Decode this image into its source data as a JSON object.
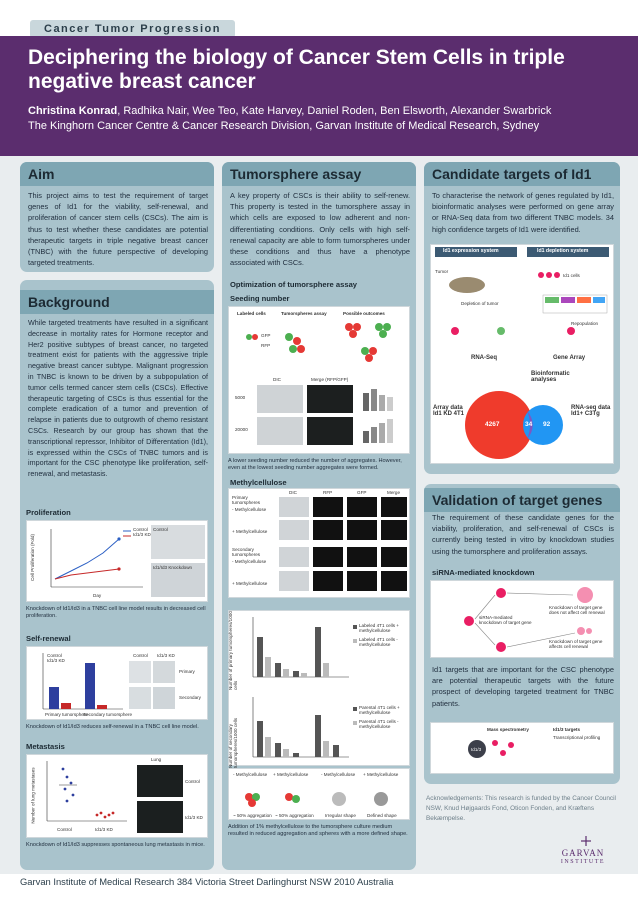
{
  "topic_tag": "Cancer Tumor Progression",
  "title": "Deciphering the biology of Cancer Stem Cells in triple negative breast cancer",
  "authors_lead": "Christina Konrad",
  "authors_rest": ", Radhika Nair, Wee Teo, Kate Harvey, Daniel Roden, Ben Elsworth, Alexander Swarbrick",
  "affiliation": "The Kinghorn Cancer Centre & Cancer Research Division, Garvan Institute of Medical Research, Sydney",
  "aim": {
    "heading": "Aim",
    "text": "This project aims to test the requirement of target genes of Id1 for the viability, self-renewal, and proliferation of cancer stem cells (CSCs). The aim is thus to test whether these candidates are potential therapeutic targets in triple negative breast cancer (TNBC) with the future perspective of developing targeted treatments."
  },
  "background": {
    "heading": "Background",
    "text": "While targeted treatments have resulted in a significant decrease in mortality rates for Hormone receptor and Her2 positive subtypes of breast cancer, no targeted treatment exist for patients with the aggressive triple negative breast cancer subtype. Malignant progression in TNBC is known to be driven by a subpopulation of tumor cells termed cancer stem cells (CSCs). Effective therapeutic targeting of CSCs is thus essential for the complete eradication of a tumor and prevention of relapse in patients due to outgrowth of chemo resistant CSCs. Research by our group has shown that the transcriptional repressor, Inhibitor of Differentation (Id1), is expressed within the CSCs of TNBC tumors and is important for the CSC phenotype like proliferation, self-renewal, and metastasis.",
    "proliferation": {
      "title": "Proliferation",
      "ylabel": "Cell Proliferation (Fold)",
      "xlabel": "Day",
      "legend": [
        "Control",
        "Id1/3 KD"
      ],
      "img_labels": [
        "Control",
        "Id1/Id3 Knockdown"
      ],
      "caption": "Knockdown of Id1/Id3 in a TNBC cell line model results in decreased cell proliferation."
    },
    "self_renewal": {
      "title": "Self-renewal",
      "legend": [
        "Control",
        "Id1/3 KD"
      ],
      "groups": [
        "Primary tumorsphere",
        "Secondary tumorsphere"
      ],
      "img_labels": [
        "Control",
        "Id1/3 KD",
        "Primary",
        "Secondary"
      ],
      "caption": "Knockdown of Id1/Id3 reduces self-renewal in a TNBC cell line model."
    },
    "metastasis": {
      "title": "Metastasis",
      "ylabel": "Number of lung metastases",
      "img_title": "Lung",
      "img_labels": [
        "Control",
        "Id1/3 KD"
      ],
      "groups": [
        "Control",
        "Id1/3 KD"
      ],
      "caption": "Knockdown of Id1/Id3 suppresses spontaneous lung metastasis in mice."
    }
  },
  "tumorsphere": {
    "heading": "Tumorsphere assay",
    "text": "A key property of CSCs is their ability to self-renew. This property is tested in the tumorsphere assay in which cells are exposed to low adherent and non-differentiating conditions. Only cells with high self-renewal capacity are able to form tumorspheres under these conditions and thus have a phenotype associated with CSCs.",
    "opt_title": "Optimization of tumorsphere assay",
    "seeding_title": "Seeding number",
    "seeding_cols": [
      "Labeled cells",
      "Tumorspheres assay",
      "Possible outcomes"
    ],
    "seeding_labels": [
      "GFP",
      "RFP"
    ],
    "seeding_img_labels": [
      "DIC",
      "Merge (RFP/GFP)"
    ],
    "seeding_rows": [
      "5000",
      "20000"
    ],
    "seeding_caption": "A lower seeding number reduced the number of aggregates. However, even at the lowest seeding number aggregates were formed.",
    "mc_title": "Methylcellulose",
    "mc_cols": [
      "DIC",
      "RFP",
      "GFP",
      "Merge"
    ],
    "mc_rows": [
      "Primary tumorspheres",
      "- Methylcellulose",
      "+ Methylcellulose",
      "Secondary tumorspheres",
      "- Methylcellulose",
      "+ Methylcellulose"
    ],
    "chart1": {
      "ylabel": "Number of primary tumorspheres/1000 cells",
      "legend": [
        "Labeled 4T1 cells + methylcellulose",
        "Labeled 4T1 cells - methylcellulose"
      ]
    },
    "chart2": {
      "ylabel": "Number of secondary tumorspheres/1000 cells",
      "legend": [
        "Parental 4T1 cells + methylcellulose",
        "Parental 4T1 cells - methylcellulose"
      ]
    },
    "mc_diagram_labels": [
      "- Methylcellulose",
      "+ Methylcellulose",
      "- Methylcellulose",
      "+ Methylcellulose"
    ],
    "mc_diagram_small": [
      "~ 50% aggregation",
      "~ 50% aggregation",
      "Irregular shape",
      "Defined shape"
    ],
    "mc_caption": "Addition of 1% methylcellulose to the tumorsphere culture medium resulted in reduced aggregation and spheres with a more defined shape."
  },
  "candidates": {
    "heading": "Candidate targets of Id1",
    "text": "To characterise the network of genes regulated by Id1, bioinformatic analyses were performed on gene array or RNA-Seq data from two different TNBC models. 34 high confidence targets of Id1 were identified.",
    "diagram_titles": [
      "Id1 expression system",
      "Id1 depletion system"
    ],
    "diagram_labels": [
      "RNA-Seq",
      "Gene Array",
      "Bioinformatic analyses"
    ],
    "diagram_small": [
      "Tumor",
      "Id1 cells",
      "Depletion of tumor",
      "Repopulation"
    ],
    "venn_left_label": "Array data\nId1 KD 4T1",
    "venn_right_label": "RNA-seq data\nId1+ C3Tg",
    "venn_values": [
      "4267",
      "34",
      "92"
    ]
  },
  "validation": {
    "heading": "Validation of target genes",
    "text": "The requirement of these candidate genes for the viability, proliferation, and self-renewal of CSCs is currently being tested in vitro by knockdown studies using the tumorsphere and proliferation assays.",
    "sirna_title": "siRNA-mediated knockdown",
    "text2": "Id1 targets that are important for the CSC phenotype are potential therapeutic targets with the future prospect of developing targeted treatment for TNBC patients.",
    "diagram_small": [
      "Knockdown of target gene does not affect cell renewal",
      "siRNA-mediated knockdown of target gene",
      "Knockdown of target gene affects cell renewal",
      "Mass spectrometry",
      "Id1/3 targets",
      "Id1/3",
      "Transcriptional profiling"
    ]
  },
  "acknowledgements": "Acknowledgements: This research is funded by the Cancer Council NSW, Knud Højgaards Fond, Oticon Fonden, and Kræftens Bekæmpelse.",
  "logo_text": "GARVAN",
  "logo_sub": "INSTITUTE",
  "footer": "Garvan Institute of Medical Research 384 Victoria Street Darlinghurst NSW 2010 Australia",
  "colors": {
    "header": "#5b2d6e",
    "panel": "#a9c3cc",
    "panel_head": "#7ea6b3",
    "band": "#e9edef"
  }
}
